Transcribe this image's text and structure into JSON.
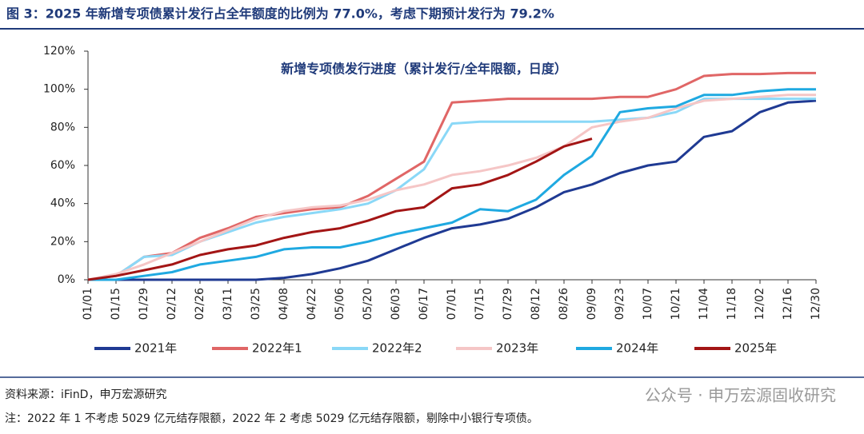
{
  "chart_data": {
    "type": "line",
    "title": "图 3：2025 年新增专项债累计发行占全年额度的比例为 77.0%，考虑下期预计发行为 79.2%",
    "subtitle": "新增专项债发行进度（累计发行/全年限额，日度）",
    "source": "资料来源：iFinD，申万宏源研究",
    "watermark": "公众号 · 申万宏源固收研究",
    "footnote": "注：2022 年 1 不考虑 5029 亿元结存限额，2022 年 2 考虑 5029 亿元结存限额，剔除中小银行专项债。",
    "categories": [
      "01/01",
      "01/15",
      "01/29",
      "02/12",
      "02/26",
      "03/11",
      "03/25",
      "04/08",
      "04/22",
      "05/06",
      "05/20",
      "06/03",
      "06/17",
      "07/01",
      "07/15",
      "07/29",
      "08/12",
      "08/26",
      "09/09",
      "09/23",
      "10/07",
      "10/21",
      "11/04",
      "11/18",
      "12/02",
      "12/16",
      "12/30"
    ],
    "ylim": [
      0,
      120
    ],
    "yticks": [
      {
        "value": 0,
        "label": "0%"
      },
      {
        "value": 20,
        "label": "20%"
      },
      {
        "value": 40,
        "label": "40%"
      },
      {
        "value": 60,
        "label": "60%"
      },
      {
        "value": 80,
        "label": "80%"
      },
      {
        "value": 100,
        "label": "100%"
      },
      {
        "value": 120,
        "label": "120%"
      }
    ],
    "series": [
      {
        "name": "2021年",
        "color": "#1f3a93",
        "values": [
          0,
          0,
          0,
          0,
          0,
          0,
          0,
          1,
          3,
          6,
          10,
          16,
          22,
          27,
          29,
          32,
          38,
          46,
          50,
          56,
          60,
          62,
          75,
          78,
          88,
          93,
          94
        ]
      },
      {
        "name": "2022年1",
        "color": "#e06666",
        "values": [
          0,
          2,
          12,
          14,
          22,
          27,
          33,
          35,
          37,
          38,
          44,
          53,
          62,
          93,
          94,
          95,
          95,
          95,
          95,
          96,
          96,
          100,
          107,
          108,
          108,
          108.5,
          108.5
        ]
      },
      {
        "name": "2022年2",
        "color": "#8ad8f7",
        "values": [
          0,
          2,
          12,
          13,
          20,
          25,
          30,
          33,
          35,
          37,
          40,
          47,
          58,
          82,
          83,
          83,
          83,
          83,
          83,
          84,
          85,
          88,
          95,
          95,
          95,
          95,
          95
        ]
      },
      {
        "name": "2023年",
        "color": "#f5c6c6",
        "values": [
          0,
          3,
          8,
          14,
          20,
          26,
          32,
          36,
          38,
          39,
          42,
          47,
          50,
          55,
          57,
          60,
          64,
          70,
          80,
          83,
          85,
          90,
          94,
          95,
          96,
          97,
          97
        ]
      },
      {
        "name": "2024年",
        "color": "#1fa9e1",
        "values": [
          0,
          0,
          2,
          4,
          8,
          10,
          12,
          16,
          17,
          17,
          20,
          24,
          27,
          30,
          37,
          36,
          42,
          55,
          65,
          88,
          90,
          91,
          97,
          97,
          99,
          100,
          100
        ]
      },
      {
        "name": "2025年",
        "color": "#a31515",
        "values": [
          0,
          2,
          5,
          8,
          13,
          16,
          18,
          22,
          25,
          27,
          31,
          36,
          38,
          48,
          50,
          55,
          62,
          70,
          74,
          null,
          null,
          null,
          null,
          null,
          null,
          null,
          null
        ]
      }
    ]
  }
}
